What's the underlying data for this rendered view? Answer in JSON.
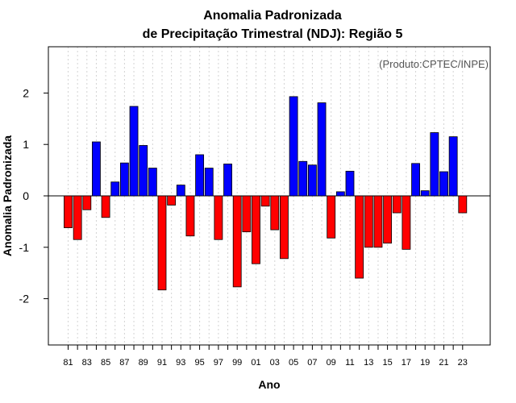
{
  "chart_data": {
    "type": "bar",
    "title": "Anomalia Padronizada",
    "subtitle": "de Precipitação Trimestral (NDJ): Região 5",
    "xlabel": "Ano",
    "ylabel": "Anomalia Padronizada",
    "annotation": "(Produto:CPTEC/INPE)",
    "ylim": [
      -2.9,
      2.9
    ],
    "yticks": [
      "-2",
      "-1",
      "0",
      "1",
      "2"
    ],
    "ytick_values": [
      -2,
      -1,
      0,
      1,
      2
    ],
    "grid": true,
    "colors": {
      "positive": "#0000ff",
      "negative": "#ff0000",
      "grid": "#d3d3d3"
    },
    "categories": [
      "81",
      "82",
      "83",
      "84",
      "85",
      "86",
      "87",
      "88",
      "89",
      "90",
      "91",
      "92",
      "93",
      "94",
      "95",
      "96",
      "97",
      "98",
      "99",
      "00",
      "01",
      "02",
      "03",
      "04",
      "05",
      "06",
      "07",
      "08",
      "09",
      "10",
      "11",
      "12",
      "13",
      "14",
      "15",
      "16",
      "17",
      "18",
      "19",
      "20",
      "21",
      "22",
      "23"
    ],
    "xtick_labels": [
      "81",
      "83",
      "85",
      "87",
      "89",
      "91",
      "93",
      "95",
      "97",
      "99",
      "01",
      "03",
      "05",
      "07",
      "09",
      "11",
      "13",
      "15",
      "17",
      "19",
      "21",
      "23"
    ],
    "values": [
      -0.62,
      -0.85,
      -0.27,
      1.05,
      -0.42,
      0.27,
      0.64,
      1.74,
      0.98,
      0.54,
      -1.83,
      -0.18,
      0.21,
      -0.78,
      0.8,
      0.54,
      -0.85,
      0.62,
      -1.77,
      -0.7,
      -1.32,
      -0.2,
      -0.66,
      -1.22,
      1.93,
      0.67,
      0.6,
      1.81,
      -0.82,
      0.08,
      0.48,
      -1.6,
      -1.0,
      -1.0,
      -0.92,
      -0.33,
      -1.04,
      0.63,
      0.1,
      1.23,
      0.47,
      1.15,
      -0.33
    ]
  }
}
